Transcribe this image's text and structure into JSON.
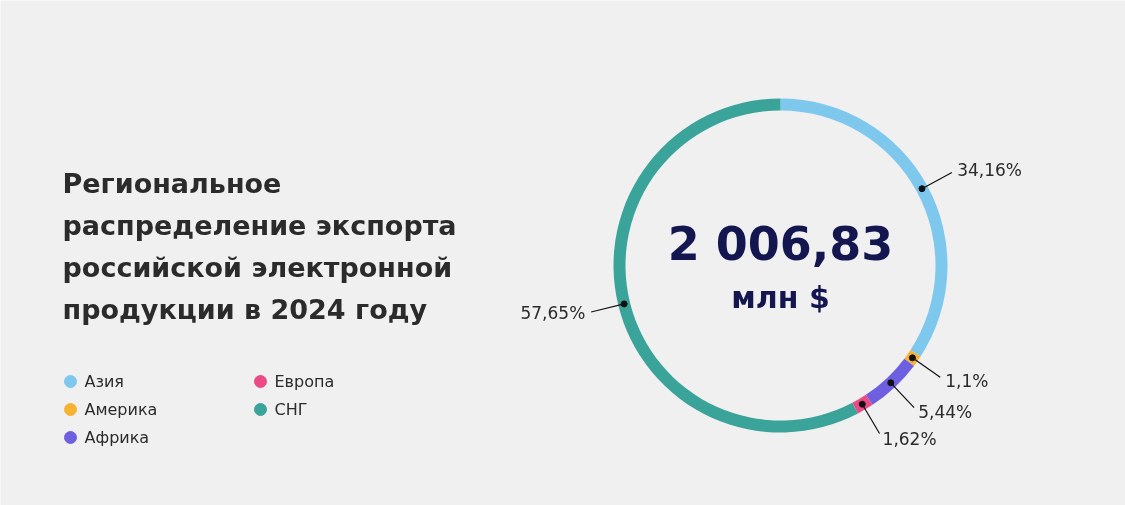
{
  "chart_data": {
    "type": "donut",
    "title": "Региональное распределение экспорта российской электронной продукции в 2024 году",
    "categories": [
      "Азия",
      "Америка",
      "Африка",
      "Европа",
      "СНГ"
    ],
    "values": [
      34.16,
      1.1,
      5.44,
      1.62,
      57.65
    ],
    "colors": [
      "#7ec8ee",
      "#f7b233",
      "#6e5fe0",
      "#eb4a86",
      "#3aa39a"
    ],
    "value_labels": [
      "34,16%",
      "1,1%",
      "5,44%",
      "1,62%",
      "57,65%"
    ],
    "annotations": [
      "2 006,83",
      "млн $"
    ],
    "legend": "left"
  }
}
